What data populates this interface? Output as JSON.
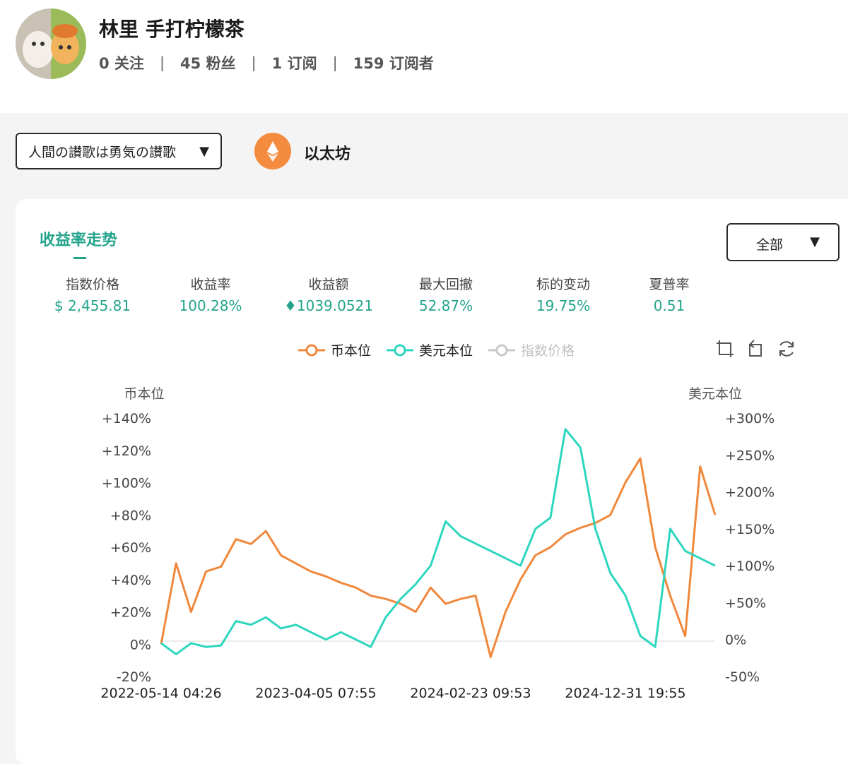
{
  "profile": {
    "name": "林里 手打柠檬茶",
    "stats": [
      "0 关注",
      "45 粉丝",
      "1 订阅",
      "159 订阅者"
    ],
    "separator": "|"
  },
  "strategy": {
    "selected": "人間の讃歌は勇気の讃歌",
    "caret": "▼"
  },
  "coin": {
    "name": "以太坊",
    "icon": "ethereum-icon",
    "color": "#f48b3f"
  },
  "card": {
    "tab_title": "收益率走势",
    "range": {
      "selected": "全部",
      "caret": "▼"
    },
    "metrics": [
      {
        "label": "指数价格",
        "value": "$ 2,455.81"
      },
      {
        "label": "收益率",
        "value": "100.28%"
      },
      {
        "label": "收益额",
        "value": "♦1039.0521"
      },
      {
        "label": "最大回撤",
        "value": "52.87%"
      },
      {
        "label": "标的变动",
        "value": "19.75%"
      },
      {
        "label": "夏普率",
        "value": "0.51"
      }
    ]
  },
  "toolbar": {
    "icons": [
      "crop-icon",
      "undo-icon",
      "refresh-icon"
    ]
  },
  "colors": {
    "accent": "#23a38b",
    "coin_series": "#f0883c",
    "usd_series": "#2ed6bf",
    "index_series": "#c8c8c8"
  },
  "chart_data": {
    "type": "line",
    "left_axis_title": "币本位",
    "right_axis_title": "美元本位",
    "left_ticks": [
      "+140%",
      "+120%",
      "+100%",
      "+80%",
      "+60%",
      "+40%",
      "+20%",
      "0%",
      "-20%"
    ],
    "right_ticks": [
      "+300%",
      "+250%",
      "+200%",
      "+150%",
      "+100%",
      "+50%",
      "0%",
      "-50%"
    ],
    "ylim_left": [
      -20,
      140
    ],
    "ylim_right": [
      -50,
      300
    ],
    "x_tick_labels": [
      "2022-05-14 04:26",
      "2023-04-05 07:55",
      "2024-02-23 09:53",
      "2024-12-31 19:55"
    ],
    "legend": [
      {
        "name": "币本位",
        "active": true
      },
      {
        "name": "美元本位",
        "active": true
      },
      {
        "name": "指数价格",
        "active": false
      }
    ],
    "x": [
      "2022-05-14",
      "2022-06-15",
      "2022-07-15",
      "2022-08-15",
      "2022-09-15",
      "2022-10-15",
      "2022-11-15",
      "2022-12-15",
      "2023-01-15",
      "2023-02-15",
      "2023-03-15",
      "2023-04-05",
      "2023-05-15",
      "2023-06-15",
      "2023-07-15",
      "2023-08-15",
      "2023-09-15",
      "2023-10-15",
      "2023-11-15",
      "2023-12-15",
      "2024-01-15",
      "2024-02-23",
      "2024-03-15",
      "2024-04-15",
      "2024-05-15",
      "2024-06-15",
      "2024-07-15",
      "2024-08-15",
      "2024-09-15",
      "2024-10-15",
      "2024-11-15",
      "2024-12-31",
      "2025-01-31",
      "2025-02-28",
      "2025-03-31",
      "2025-04-30",
      "2025-05-31",
      "2025-06-15"
    ],
    "series": [
      {
        "name": "币本位",
        "axis": "left",
        "values": [
          0,
          50,
          20,
          45,
          48,
          65,
          62,
          70,
          55,
          50,
          45,
          42,
          38,
          35,
          30,
          28,
          25,
          20,
          35,
          25,
          28,
          30,
          -8,
          20,
          40,
          55,
          60,
          68,
          72,
          75,
          80,
          100,
          115,
          60,
          30,
          5,
          110,
          80
        ]
      },
      {
        "name": "美元本位",
        "axis": "right",
        "values": [
          -5,
          -20,
          -5,
          -10,
          -8,
          25,
          20,
          30,
          15,
          20,
          10,
          0,
          10,
          0,
          -10,
          30,
          55,
          75,
          100,
          160,
          140,
          130,
          120,
          110,
          100,
          150,
          165,
          285,
          260,
          150,
          90,
          60,
          5,
          -10,
          150,
          120,
          110,
          100
        ]
      }
    ]
  }
}
